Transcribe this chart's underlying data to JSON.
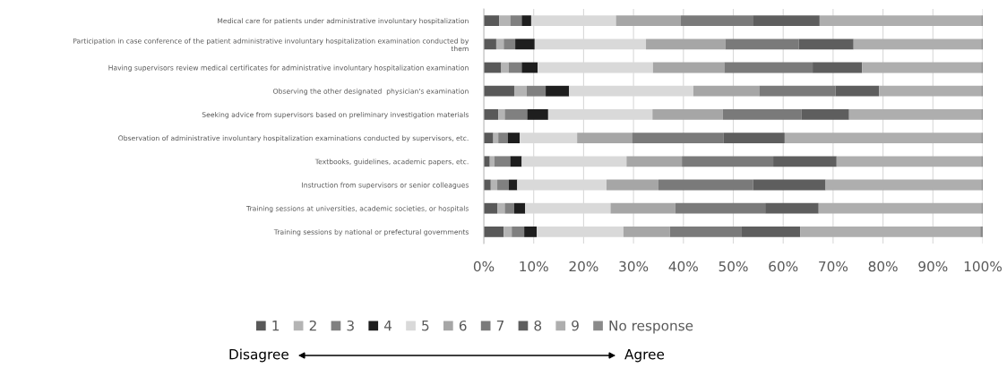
{
  "chart_data": {
    "type": "bar",
    "orientation": "horizontal",
    "stacked": true,
    "categories": [
      "Medical care for patients under administrative involuntary hospitalization",
      "Participation in case conference of the patient administrative involuntary hospitalization examination conducted by\nthem",
      "Having supervisors review medical certificates for administrative involuntary hospitalization examination",
      "Observing the other designated  physician's examination",
      "Seeking advice from supervisors based on preliminary investigation materials",
      "Observation of administrative involuntary hospitalization examinations conducted by supervisors, etc.",
      "Textbooks, guidelines, academic papers, etc.",
      "Instruction from supervisors or senior colleagues",
      "Training sessions at universities, academic societies, or hospitals",
      "Training sessions by national or prefectural governments"
    ],
    "series": [
      {
        "name": "1",
        "color": "#595959",
        "values": [
          3.1,
          2.5,
          3.5,
          6.1,
          2.9,
          1.9,
          1.2,
          1.4,
          2.7,
          4.0
        ]
      },
      {
        "name": "2",
        "color": "#b4b4b4",
        "values": [
          2.2,
          1.5,
          1.5,
          2.5,
          1.3,
          1.0,
          0.9,
          1.3,
          1.5,
          1.6
        ]
      },
      {
        "name": "3",
        "color": "#808080",
        "values": [
          2.3,
          2.3,
          2.6,
          3.8,
          4.5,
          1.9,
          3.2,
          2.3,
          1.9,
          2.5
        ]
      },
      {
        "name": "4",
        "color": "#1e1e1e",
        "values": [
          1.9,
          3.9,
          3.2,
          4.7,
          4.2,
          2.4,
          2.3,
          1.7,
          2.2,
          2.5
        ]
      },
      {
        "name": "5",
        "color": "#d9d9d9",
        "values": [
          17.0,
          22.3,
          23.1,
          24.9,
          20.9,
          11.5,
          21.0,
          17.9,
          17.1,
          17.4
        ]
      },
      {
        "name": "6",
        "color": "#a6a6a6",
        "values": [
          13.0,
          15.9,
          14.3,
          13.2,
          14.1,
          11.0,
          11.1,
          10.4,
          13.0,
          9.3
        ]
      },
      {
        "name": "7",
        "color": "#7a7a7a",
        "values": [
          14.4,
          14.7,
          17.7,
          15.3,
          15.8,
          18.3,
          18.3,
          19.0,
          18.0,
          14.4
        ]
      },
      {
        "name": "8",
        "color": "#5e5e5e",
        "values": [
          13.4,
          11.0,
          9.9,
          8.7,
          9.5,
          12.3,
          12.7,
          14.5,
          10.7,
          11.7
        ]
      },
      {
        "name": "9",
        "color": "#aeaeae",
        "values": [
          32.4,
          25.6,
          23.9,
          20.5,
          26.5,
          39.4,
          29.0,
          31.2,
          32.6,
          36.1
        ]
      },
      {
        "name": "No response",
        "color": "#8a8a8a",
        "values": [
          0.3,
          0.3,
          0.3,
          0.3,
          0.3,
          0.3,
          0.3,
          0.3,
          0.3,
          0.5
        ]
      }
    ],
    "xlim": [
      0,
      100
    ],
    "xticks": [
      {
        "value": 0,
        "label": "0%"
      },
      {
        "value": 10,
        "label": "10%"
      },
      {
        "value": 20,
        "label": "20%"
      },
      {
        "value": 30,
        "label": "30%"
      },
      {
        "value": 40,
        "label": "40%"
      },
      {
        "value": 50,
        "label": "50%"
      },
      {
        "value": 60,
        "label": "60%"
      },
      {
        "value": 70,
        "label": "70%"
      },
      {
        "value": 80,
        "label": "80%"
      },
      {
        "value": 90,
        "label": "90%"
      },
      {
        "value": 100,
        "label": "100%"
      }
    ],
    "grid": "x",
    "legend": "bottom",
    "annotations": [
      "Disagree",
      "Agree"
    ]
  }
}
